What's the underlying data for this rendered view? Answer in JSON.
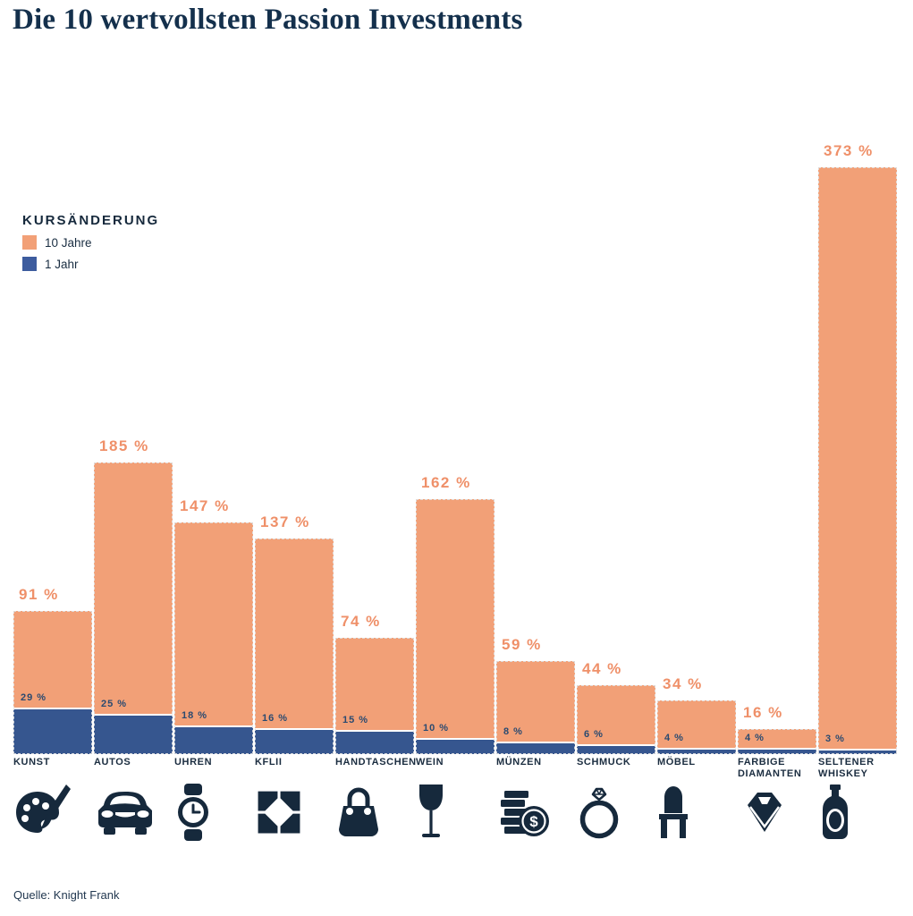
{
  "title": "Die 10 wertvollsten Passion Investments",
  "legend": {
    "heading": "KURSÄNDERUNG",
    "items": [
      {
        "label": "10 Jahre",
        "color": "#f2a077"
      },
      {
        "label": "1 Jahr",
        "color": "#3d5c9e"
      }
    ]
  },
  "source": "Quelle: Knight Frank",
  "colors": {
    "bar_10y": "#f2a077",
    "bar_1y": "#36568f",
    "value_label_10y": "#ef9069",
    "value_label_1y": "#2a4a70",
    "text_dark_navy": "#16293c",
    "title": "#14304c"
  },
  "chart_data": {
    "type": "bar",
    "title": "Die 10 wertvollsten Passion Investments",
    "categories": [
      "KUNST",
      "AUTOS",
      "UHREN",
      "KFLII",
      "HANDTASCHEN",
      "WEIN",
      "MÜNZEN",
      "SCHMUCK",
      "MÖBEL",
      "FARBIGE DIAMANTEN",
      "SELTENER WHISKEY"
    ],
    "icons": [
      "palette-brush-icon",
      "car-icon",
      "wristwatch-icon",
      "kflii-logo-icon",
      "handbag-icon",
      "wine-glass-icon",
      "coins-dollar-icon",
      "diamond-ring-icon",
      "chair-icon",
      "diamond-gem-icon",
      "whiskey-bottle-icon"
    ],
    "series": [
      {
        "name": "10 Jahre",
        "color": "#f2a077",
        "values": [
          91,
          185,
          147,
          137,
          74,
          162,
          59,
          44,
          34,
          16,
          373
        ],
        "labels": [
          "91 %",
          "185 %",
          "147 %",
          "137 %",
          "74 %",
          "162 %",
          "59 %",
          "44 %",
          "34 %",
          "16 %",
          "373 %"
        ]
      },
      {
        "name": "1 Jahr",
        "color": "#36568f",
        "values": [
          29,
          25,
          18,
          16,
          15,
          10,
          8,
          6,
          4,
          4,
          3
        ],
        "labels": [
          "29 %",
          "25 %",
          "18 %",
          "16 %",
          "15 %",
          "10 %",
          "8 %",
          "6 %",
          "4 %",
          "4 %",
          "3 %"
        ]
      }
    ],
    "value_suffix": " %",
    "xlabel": "",
    "ylabel": "Kursänderung",
    "ylim": [
      0,
      400
    ],
    "grid": false,
    "axis_labels_shown": false,
    "legend_position": "upper-left",
    "bar_style": "10-year bar from baseline, 1-year bar overlaid at base"
  }
}
